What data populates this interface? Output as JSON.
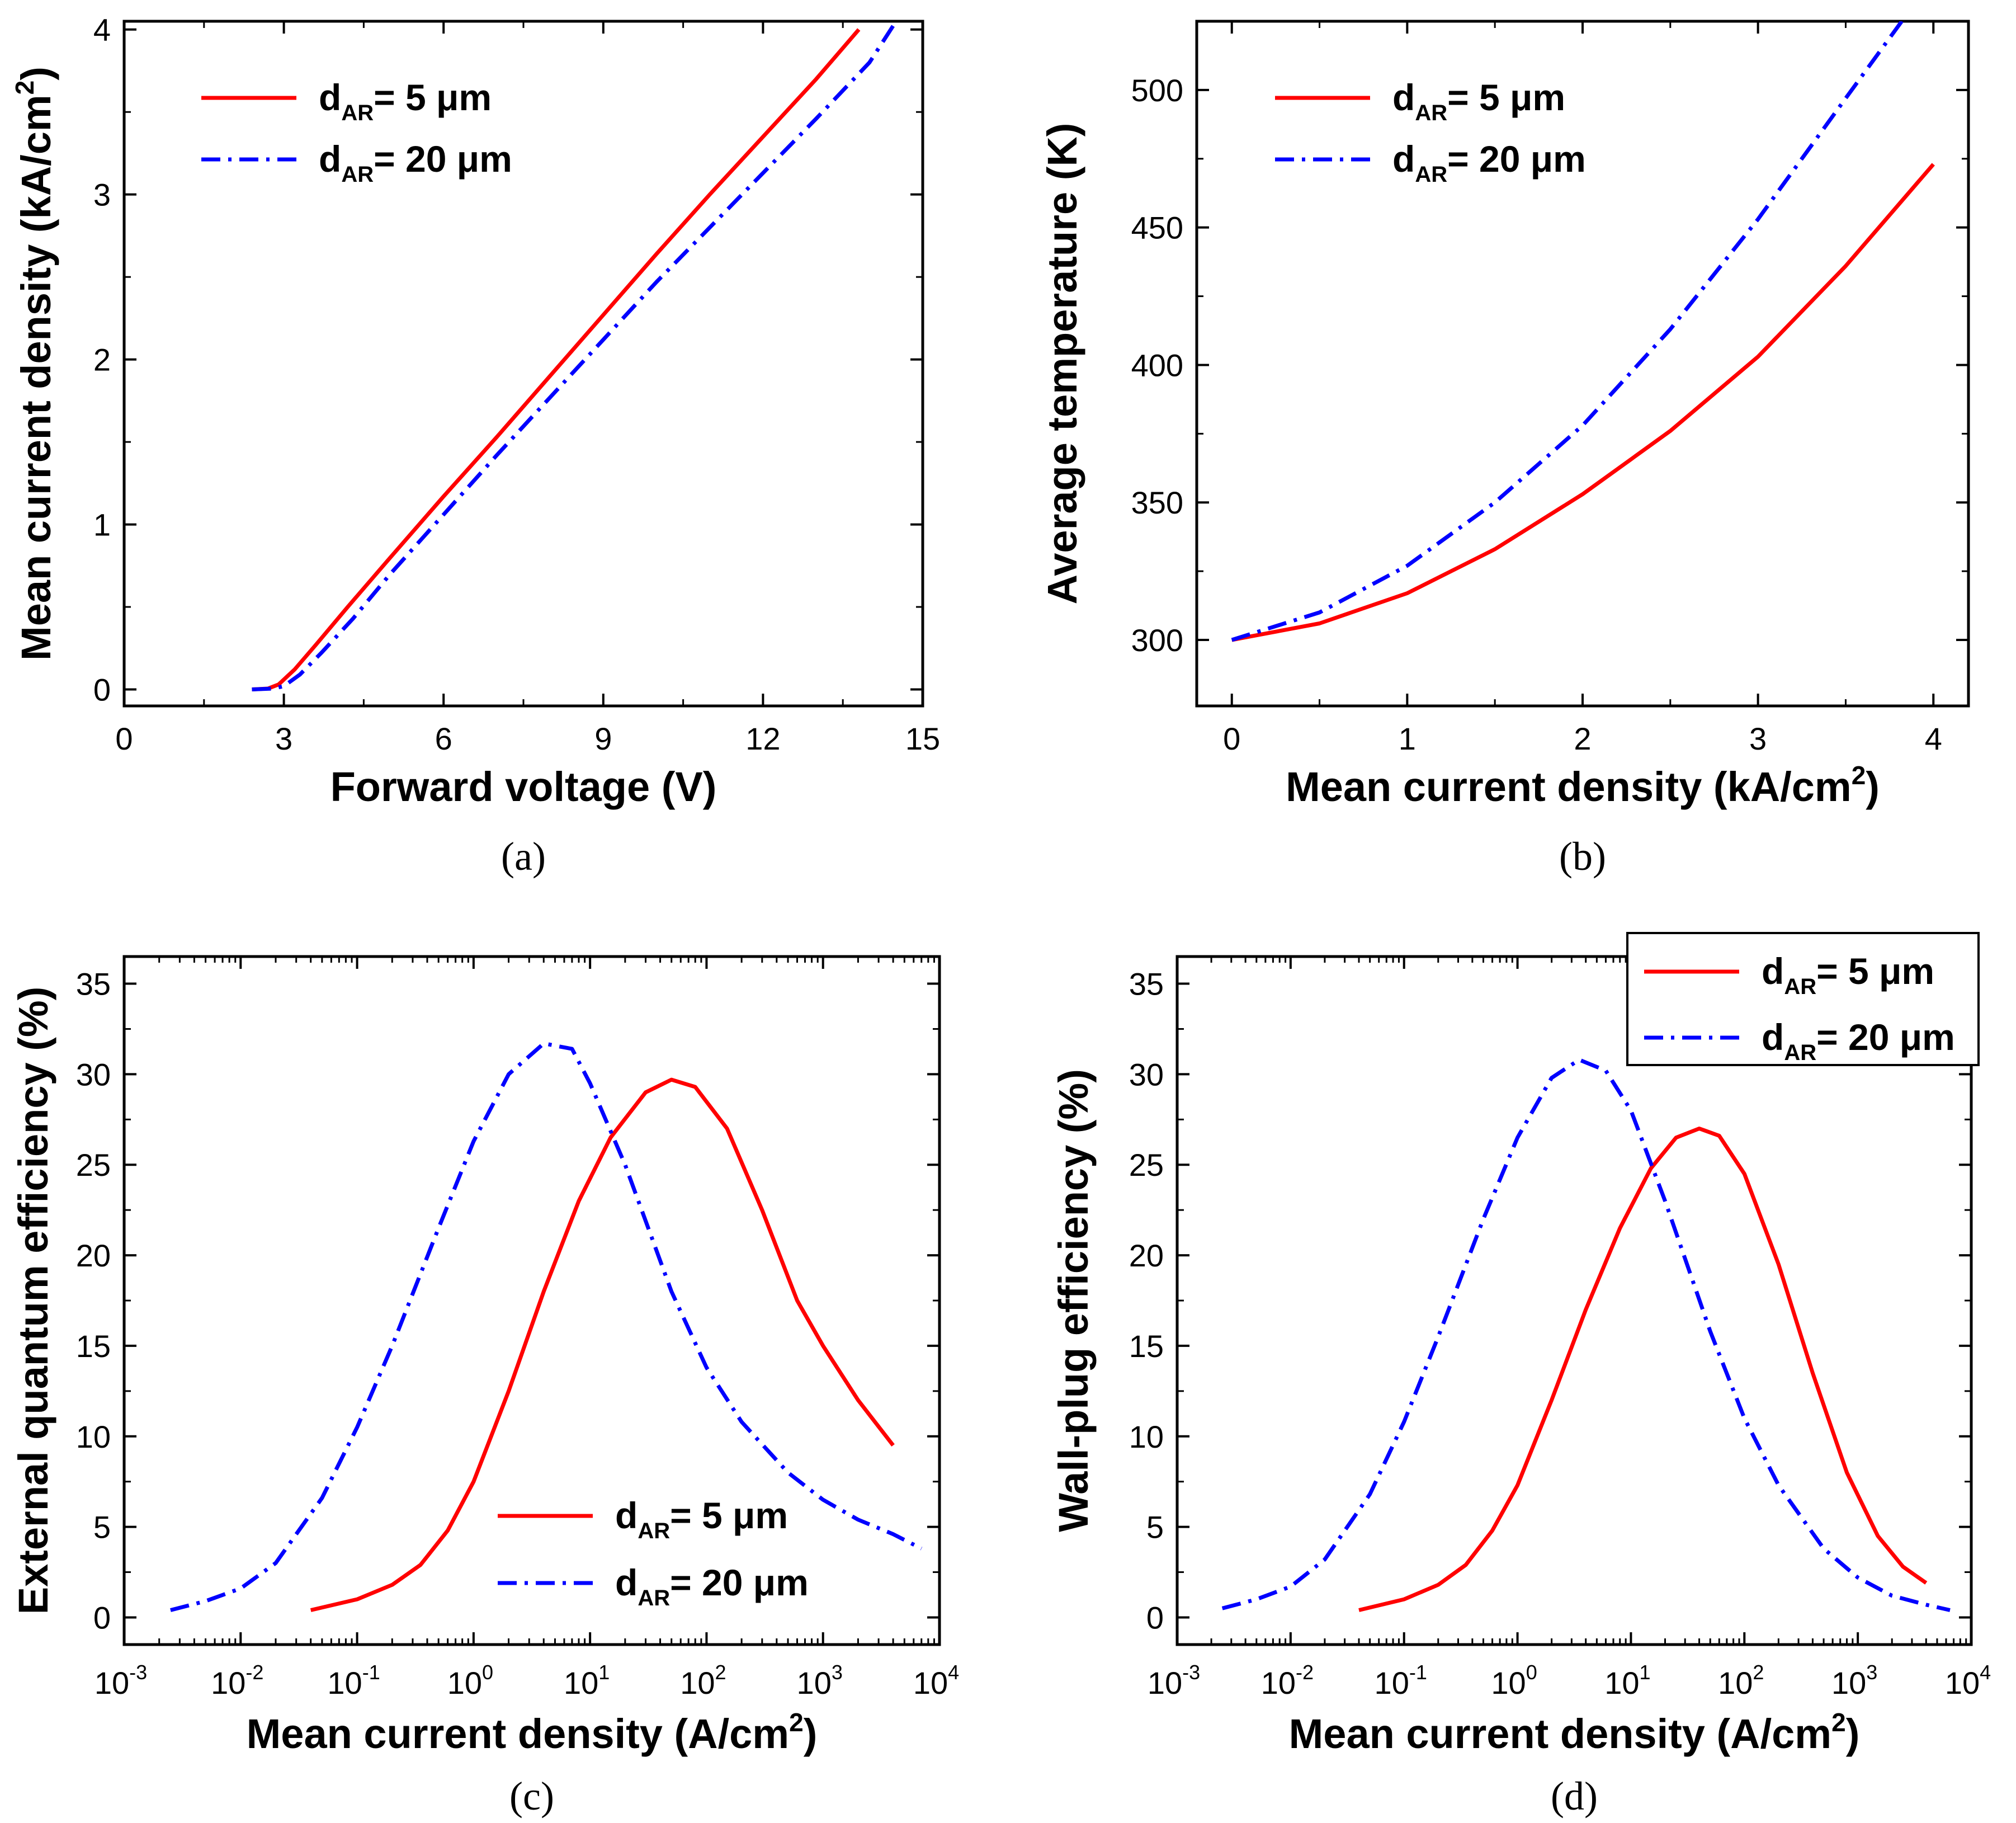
{
  "colors": {
    "series1": "#ff0000",
    "series2": "#0000ff",
    "axis": "#000000"
  },
  "chart_data": [
    {
      "id": "a",
      "type": "line",
      "panel_label": "(a)",
      "xlabel": "Forward voltage (V)",
      "ylabel_main": "Mean current density (kA/cm",
      "ylabel_sup": "2",
      "ylabel_tail": ")",
      "xscale": "linear",
      "xlim": [
        0,
        15
      ],
      "ylim": [
        -0.1,
        4.05
      ],
      "xticks": [
        0,
        3,
        6,
        9,
        12,
        15
      ],
      "xtick_labels": [
        "0",
        "3",
        "6",
        "9",
        "12",
        "15"
      ],
      "yticks": [
        0,
        1,
        2,
        3,
        4
      ],
      "ytick_labels": [
        "0",
        "1",
        "2",
        "3",
        "4"
      ],
      "legend_position": "top-left",
      "series": [
        {
          "name_main": "d",
          "name_sub": "AR",
          "name_tail": "=  5 μm",
          "style": "solid",
          "x": [
            2.4,
            2.7,
            2.9,
            3.2,
            3.6,
            4.2,
            5.0,
            6.0,
            7.0,
            8.0,
            9.0,
            10.0,
            11.0,
            12.0,
            13.0,
            13.8
          ],
          "y": [
            0.0,
            0.005,
            0.03,
            0.12,
            0.27,
            0.5,
            0.8,
            1.17,
            1.53,
            1.9,
            2.27,
            2.64,
            3.0,
            3.35,
            3.7,
            4.0
          ]
        },
        {
          "name_main": "d",
          "name_sub": "AR",
          "name_tail": "= 20 μm",
          "style": "dashdot",
          "x": [
            2.4,
            2.8,
            3.0,
            3.3,
            3.7,
            4.3,
            5.0,
            6.0,
            7.0,
            8.0,
            9.0,
            10.0,
            11.0,
            12.0,
            13.0,
            14.0,
            14.5
          ],
          "y": [
            0.0,
            0.005,
            0.02,
            0.09,
            0.22,
            0.43,
            0.7,
            1.06,
            1.42,
            1.77,
            2.12,
            2.47,
            2.8,
            3.13,
            3.46,
            3.8,
            4.05
          ]
        }
      ]
    },
    {
      "id": "b",
      "type": "line",
      "panel_label": "(b)",
      "xlabel_main": "Mean current density (kA/cm",
      "xlabel_sup": "2",
      "xlabel_tail": ")",
      "ylabel": "Average temperature (K)",
      "xscale": "linear",
      "xlim": [
        -0.2,
        4.2
      ],
      "ylim": [
        276,
        525
      ],
      "xticks": [
        0,
        1,
        2,
        3,
        4
      ],
      "xtick_labels": [
        "0",
        "1",
        "2",
        "3",
        "4"
      ],
      "yticks": [
        300,
        350,
        400,
        450,
        500
      ],
      "ytick_labels": [
        "300",
        "350",
        "400",
        "450",
        "500"
      ],
      "legend_position": "top-left",
      "series": [
        {
          "name_main": "d",
          "name_sub": "AR",
          "name_tail": "=  5 μm",
          "style": "solid",
          "x": [
            0,
            0.5,
            1.0,
            1.5,
            2.0,
            2.5,
            3.0,
            3.5,
            4.0
          ],
          "y": [
            300,
            306,
            317,
            333,
            353,
            376,
            403,
            436,
            473
          ]
        },
        {
          "name_main": "d",
          "name_sub": "AR",
          "name_tail": "= 20 μm",
          "style": "dashdot",
          "x": [
            0,
            0.5,
            1.0,
            1.5,
            2.0,
            2.5,
            3.0,
            3.5,
            3.82
          ],
          "y": [
            300,
            310,
            327,
            350,
            378,
            413,
            453,
            497,
            525
          ]
        }
      ]
    },
    {
      "id": "c",
      "type": "line",
      "panel_label": "(c)",
      "xlabel_main": "Mean current density (A/cm",
      "xlabel_sup": "2",
      "xlabel_tail": ")",
      "ylabel": "External quantum efficiency (%)",
      "xscale": "log",
      "xlim": [
        0.001,
        10000
      ],
      "ylim": [
        -1.5,
        36.5
      ],
      "xticks_log": [
        -3,
        -2,
        -1,
        0,
        1,
        2,
        3,
        4
      ],
      "xtick_exps": [
        "-3",
        "-2",
        "-1",
        "0",
        "1",
        "2",
        "3",
        "4"
      ],
      "xtick_base": "10",
      "yticks": [
        0,
        5,
        10,
        15,
        20,
        25,
        30,
        35
      ],
      "ytick_labels": [
        "0",
        "5",
        "10",
        "15",
        "20",
        "25",
        "30",
        "35"
      ],
      "legend_position": "bottom-right",
      "series": [
        {
          "name_main": "d",
          "name_sub": "AR",
          "name_tail": "=  5 μm",
          "style": "solid",
          "x": [
            0.04,
            0.1,
            0.2,
            0.35,
            0.6,
            1,
            2,
            4,
            8,
            15,
            30,
            50,
            80,
            150,
            300,
            600,
            1000,
            2000,
            4000
          ],
          "y": [
            0.4,
            1.0,
            1.8,
            2.9,
            4.8,
            7.5,
            12.5,
            18.0,
            23.0,
            26.5,
            29.0,
            29.7,
            29.3,
            27.0,
            22.5,
            17.5,
            15.0,
            12.0,
            9.5
          ]
        },
        {
          "name_main": "d",
          "name_sub": "AR",
          "name_tail": "= 20 μm",
          "style": "dashdot",
          "x": [
            0.0025,
            0.005,
            0.01,
            0.02,
            0.05,
            0.1,
            0.2,
            0.5,
            1,
            2,
            4,
            7,
            10,
            20,
            50,
            100,
            200,
            500,
            1000,
            2000,
            4000,
            7000
          ],
          "y": [
            0.4,
            0.9,
            1.6,
            3.0,
            6.6,
            10.5,
            15.0,
            21.5,
            26.3,
            30.0,
            31.7,
            31.4,
            29.5,
            25.0,
            18.0,
            13.8,
            10.8,
            8.0,
            6.5,
            5.4,
            4.6,
            3.8
          ]
        }
      ]
    },
    {
      "id": "d",
      "type": "line",
      "panel_label": "(d)",
      "xlabel_main": "Mean current density (A/cm",
      "xlabel_sup": "2",
      "xlabel_tail": ")",
      "ylabel": "Wall-plug efficiency (%)",
      "xscale": "log",
      "xlim": [
        0.001,
        10000
      ],
      "ylim": [
        -1.5,
        36.5
      ],
      "xticks_log": [
        -3,
        -2,
        -1,
        0,
        1,
        2,
        3,
        4
      ],
      "xtick_exps": [
        "-3",
        "-2",
        "-1",
        "0",
        "1",
        "2",
        "3",
        "4"
      ],
      "xtick_base": "10",
      "yticks": [
        0,
        5,
        10,
        15,
        20,
        25,
        30,
        35
      ],
      "ytick_labels": [
        "0",
        "5",
        "10",
        "15",
        "20",
        "25",
        "30",
        "35"
      ],
      "legend_position": "top-right",
      "series": [
        {
          "name_main": "d",
          "name_sub": "AR",
          "name_tail": "=  5 μm",
          "style": "solid",
          "x": [
            0.04,
            0.1,
            0.2,
            0.35,
            0.6,
            1,
            2,
            4,
            8,
            15,
            25,
            40,
            60,
            100,
            200,
            400,
            800,
            1500,
            2500,
            4000
          ],
          "y": [
            0.4,
            1.0,
            1.8,
            2.9,
            4.8,
            7.3,
            12.0,
            17.0,
            21.5,
            24.8,
            26.5,
            27.0,
            26.6,
            24.5,
            19.5,
            13.5,
            8.0,
            4.5,
            2.8,
            1.9
          ]
        },
        {
          "name_main": "d",
          "name_sub": "AR",
          "name_tail": "= 20 μm",
          "style": "dashdot",
          "x": [
            0.0025,
            0.005,
            0.01,
            0.02,
            0.05,
            0.1,
            0.2,
            0.5,
            1,
            2,
            3.5,
            6,
            10,
            20,
            50,
            100,
            200,
            500,
            1000,
            2000,
            4000,
            6500
          ],
          "y": [
            0.5,
            1.0,
            1.7,
            3.2,
            6.8,
            10.8,
            15.5,
            22.0,
            26.5,
            29.8,
            30.8,
            30.2,
            28.0,
            23.0,
            15.8,
            11.0,
            7.3,
            3.8,
            2.2,
            1.2,
            0.7,
            0.4
          ]
        }
      ]
    }
  ]
}
